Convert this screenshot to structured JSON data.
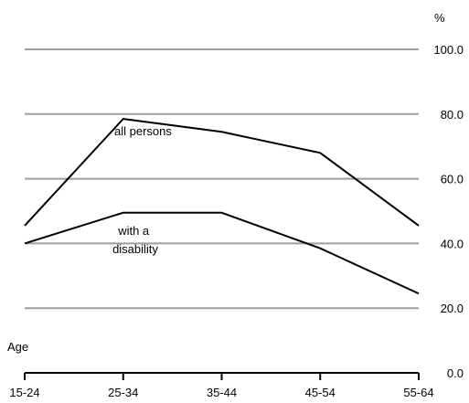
{
  "chart_data": {
    "type": "line",
    "y_unit": "%",
    "xlabel": "Age",
    "categories": [
      "15-24",
      "25-34",
      "35-44",
      "45-54",
      "55-64"
    ],
    "ylim": [
      0,
      100
    ],
    "y_ticks": [
      "0.0",
      "20.0",
      "40.0",
      "60.0",
      "80.0",
      "100.0"
    ],
    "grid": true,
    "series": [
      {
        "name": "all persons",
        "values": [
          45.5,
          78.5,
          74.5,
          68.0,
          45.5
        ]
      },
      {
        "name": "with a disability",
        "values": [
          40.0,
          49.5,
          49.5,
          38.5,
          24.5
        ]
      }
    ],
    "colors": {
      "line": "#000000",
      "grid": "#9e9e9e",
      "axis": "#000000"
    }
  }
}
